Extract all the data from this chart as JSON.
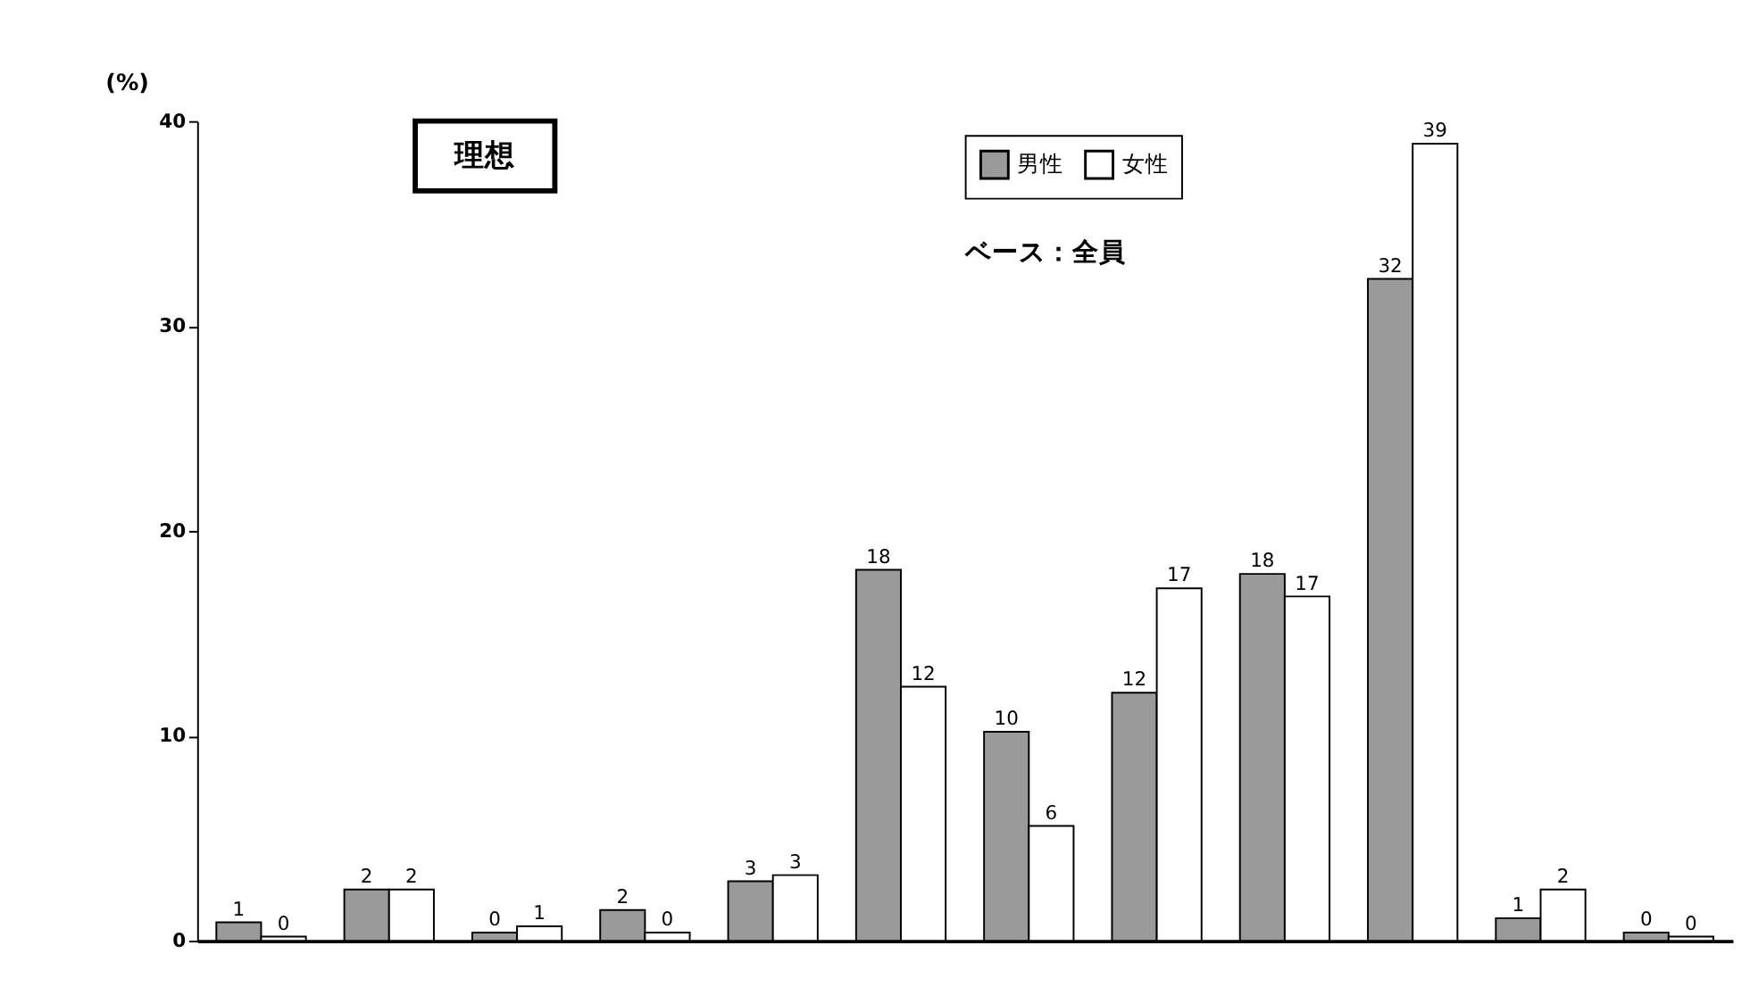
{
  "chart_data": {
    "type": "bar",
    "title": "理想",
    "ylabel": "(%)",
    "categories": [
      null,
      null,
      null,
      null,
      null,
      null,
      null,
      null,
      null,
      null,
      null,
      null
    ],
    "series": [
      {
        "name": "男性",
        "color": "#9a9a9a",
        "values": [
          0.9,
          2.5,
          0.4,
          1.5,
          2.9,
          18.1,
          10.2,
          12.1,
          17.9,
          32.3,
          1.1,
          0.4
        ],
        "value_labels": [
          "1",
          "2",
          "0",
          "2",
          "3",
          "18",
          "10",
          "12",
          "18",
          "32",
          "1",
          "0"
        ]
      },
      {
        "name": "女性",
        "color": "#ffffff",
        "values": [
          0.2,
          2.5,
          0.7,
          0.4,
          3.2,
          12.4,
          5.6,
          17.2,
          16.8,
          38.9,
          2.5,
          0.2
        ],
        "value_labels": [
          "0",
          "2",
          "1",
          "0",
          "3",
          "12",
          "6",
          "17",
          "17",
          "39",
          "2",
          "0"
        ]
      }
    ],
    "annotations": [
      "ベース：全員"
    ],
    "ylim": [
      0,
      40
    ],
    "yticks": [
      0,
      10,
      20,
      30,
      40
    ],
    "grid": false,
    "legend": "top",
    "tick_labels": "y"
  }
}
